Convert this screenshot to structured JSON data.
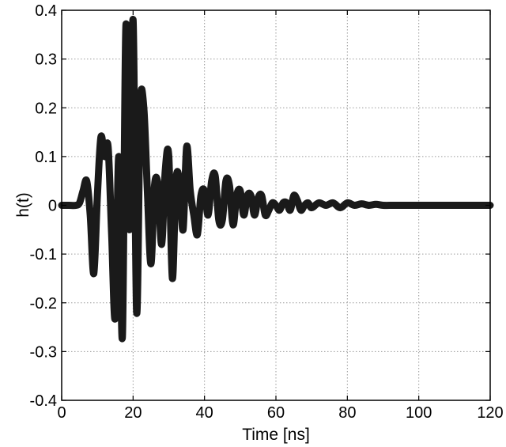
{
  "chart_data": {
    "type": "line",
    "title": "",
    "xlabel": "Time [ns]",
    "ylabel": "h(t)",
    "xlim": [
      0,
      120
    ],
    "ylim": [
      -0.4,
      0.4
    ],
    "grid": true,
    "legend": "none",
    "colors": {
      "line": "#1a1a1a",
      "grid": "#9a9a9a",
      "axes": "#000000"
    },
    "x_ticks": [
      0,
      20,
      40,
      60,
      80,
      100,
      120
    ],
    "x_tick_labels": [
      "0",
      "20",
      "40",
      "60",
      "80",
      "100",
      "120"
    ],
    "y_ticks": [
      -0.4,
      -0.3,
      -0.2,
      -0.1,
      0,
      0.1,
      0.2,
      0.3,
      0.4
    ],
    "y_tick_labels": [
      "-0.4",
      "-0.3",
      "-0.2",
      "-0.1",
      "0",
      "0.1",
      "0.2",
      "0.3",
      "0.4"
    ],
    "series": [
      {
        "x": [
          0,
          2,
          4,
          5,
          6,
          7,
          8,
          9,
          10,
          11,
          12,
          13,
          14,
          15,
          16,
          17,
          18,
          19,
          20,
          21,
          22,
          23,
          24,
          25,
          26,
          27,
          28,
          29,
          30,
          31,
          32,
          33,
          34,
          35,
          36,
          37,
          38,
          39,
          40,
          41,
          42,
          43,
          44,
          45,
          46,
          47,
          48,
          49,
          50,
          51,
          52,
          53,
          54,
          55,
          56,
          57,
          58,
          59,
          60,
          61,
          62,
          63,
          64,
          65,
          66,
          67,
          68,
          69,
          70,
          72,
          74,
          76,
          78,
          80,
          82,
          84,
          86,
          88,
          90,
          93,
          96,
          100,
          105,
          110,
          115,
          120
        ],
        "y": [
          0,
          0,
          0,
          0.005,
          0.03,
          0.05,
          -0.02,
          -0.14,
          0.02,
          0.14,
          0.1,
          0.12,
          -0.06,
          -0.23,
          0.1,
          -0.27,
          0.37,
          -0.05,
          0.38,
          -0.22,
          0.2,
          0.2,
          0.03,
          -0.12,
          0.04,
          0.04,
          -0.08,
          0.07,
          0.1,
          -0.15,
          0.05,
          0.05,
          -0.05,
          0.12,
          0.03,
          -0.02,
          -0.06,
          0.02,
          0.03,
          -0.02,
          0.05,
          0.06,
          -0.03,
          -0.03,
          0.05,
          0.04,
          -0.04,
          0.02,
          0.03,
          -0.02,
          0.02,
          0.02,
          -0.02,
          0.015,
          0.02,
          -0.02,
          -0.01,
          0.005,
          0.0,
          -0.01,
          0.005,
          0.005,
          -0.01,
          0.02,
          0.01,
          -0.01,
          0.0,
          0.005,
          -0.005,
          0.005,
          0,
          0.005,
          -0.005,
          0.005,
          0,
          0.003,
          0.0,
          0.002,
          0,
          0,
          0,
          0,
          0,
          0,
          0,
          0
        ]
      }
    ]
  }
}
